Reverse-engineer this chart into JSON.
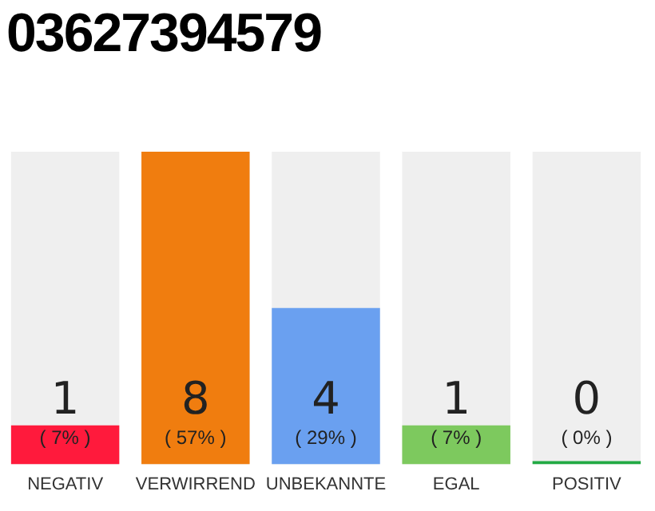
{
  "chart_data": {
    "type": "bar",
    "title": "03627394579",
    "categories": [
      "NEGATIV",
      "VERWIRREND",
      "UNBEKANNTE",
      "EGAL",
      "POSITIV"
    ],
    "values": [
      1,
      8,
      4,
      1,
      0
    ],
    "colors": [
      "#ff1a3c",
      "#f07d0f",
      "#6aa0f0",
      "#7dc95e",
      "#22aa44"
    ],
    "ylim": [
      0,
      8
    ],
    "tick_labels": "x",
    "grid": false,
    "legend": false,
    "data_labels": true,
    "annotations": [
      "( 7% )",
      "( 57% )",
      "( 29% )",
      "( 7% )",
      "( 0% )"
    ]
  }
}
